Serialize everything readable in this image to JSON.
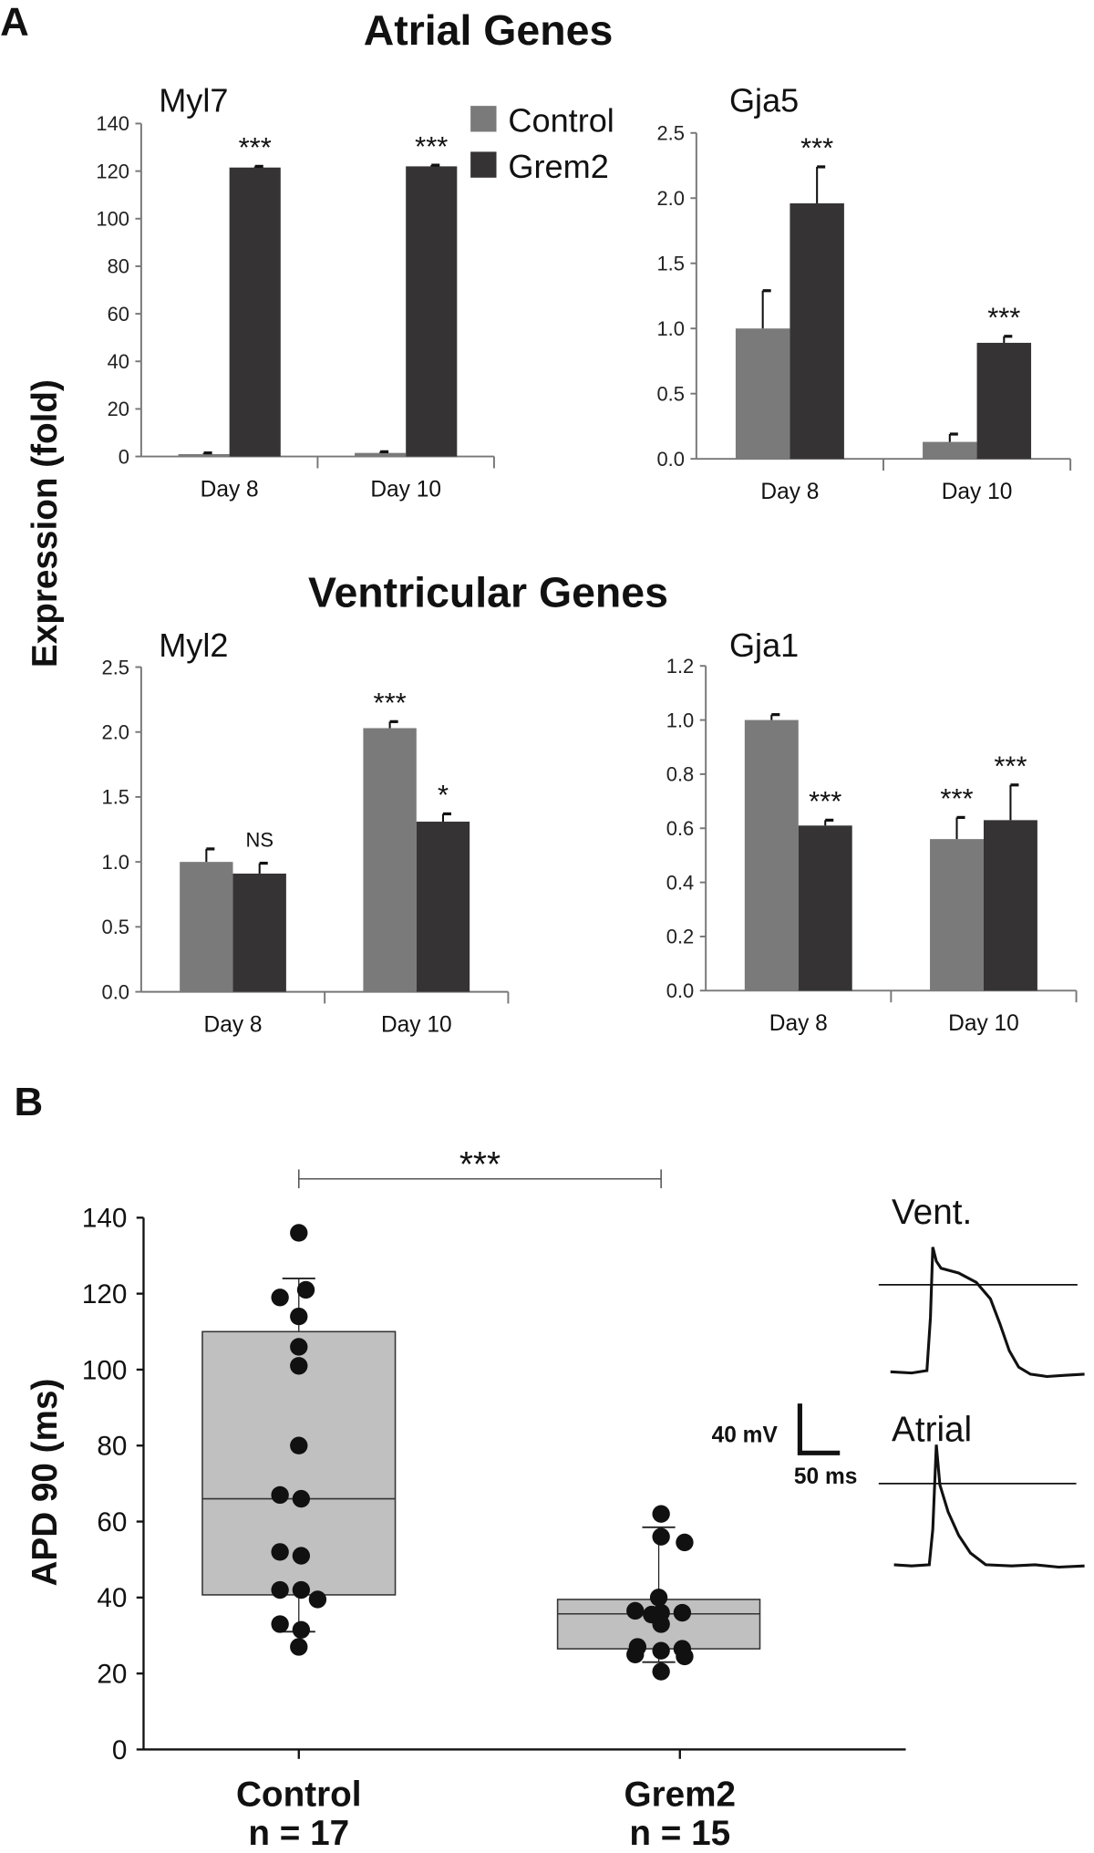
{
  "colors": {
    "control": "#7b7a7b",
    "grem2": "#363334",
    "box": "#c0c0c0",
    "error": "#111111"
  },
  "panels": {
    "a": "A",
    "b": "B"
  },
  "section_titles": {
    "atrial": "Atrial Genes",
    "ventricular": "Ventricular Genes"
  },
  "shared_ylabel": "Expression (fold)",
  "legend": [
    "Control",
    "Grem2"
  ],
  "chart_data": [
    {
      "type": "bar",
      "title": "Myl7",
      "categories": [
        "Day 8",
        "Day 10"
      ],
      "ylim": [
        0,
        140
      ],
      "yticks": [
        "0",
        "20",
        "40",
        "60",
        "80",
        "100",
        "120",
        "140"
      ],
      "series": [
        {
          "name": "Control",
          "values": [
            1,
            1.5
          ],
          "errors": [
            0.5,
            0.5
          ]
        },
        {
          "name": "Grem2",
          "values": [
            121.5,
            122
          ],
          "errors": [
            0.5,
            0.5
          ]
        }
      ],
      "annotations": [
        {
          "category": 0,
          "series": 1,
          "text": "***"
        },
        {
          "category": 1,
          "series": 1,
          "text": "***"
        }
      ]
    },
    {
      "type": "bar",
      "title": "Gja5",
      "categories": [
        "Day 8",
        "Day 10"
      ],
      "ylim": [
        0,
        2.5
      ],
      "yticks": [
        "0.0",
        "0.5",
        "1.0",
        "1.5",
        "2.0",
        "2.5"
      ],
      "series": [
        {
          "name": "Control",
          "values": [
            1.0,
            0.13
          ],
          "errors": [
            0.29,
            0.06
          ]
        },
        {
          "name": "Grem2",
          "values": [
            1.96,
            0.89
          ],
          "errors": [
            0.28,
            0.05
          ]
        }
      ],
      "annotations": [
        {
          "category": 0,
          "series": 1,
          "text": "***"
        },
        {
          "category": 1,
          "series": 1,
          "text": "***"
        }
      ]
    },
    {
      "type": "bar",
      "title": "Myl2",
      "categories": [
        "Day 8",
        "Day 10"
      ],
      "ylim": [
        0,
        2.5
      ],
      "yticks": [
        "0.0",
        "0.5",
        "1.0",
        "1.5",
        "2.0",
        "2.5"
      ],
      "series": [
        {
          "name": "Control",
          "values": [
            1.0,
            2.03
          ],
          "errors": [
            0.1,
            0.05
          ]
        },
        {
          "name": "Grem2",
          "values": [
            0.91,
            1.31
          ],
          "errors": [
            0.08,
            0.06
          ]
        }
      ],
      "annotations": [
        {
          "category": 0,
          "series": 1,
          "text": "NS"
        },
        {
          "category": 1,
          "series": 0,
          "text": "***"
        },
        {
          "category": 1,
          "series": 1,
          "text": "*"
        }
      ]
    },
    {
      "type": "bar",
      "title": "Gja1",
      "categories": [
        "Day 8",
        "Day 10"
      ],
      "ylim": [
        0,
        1.2
      ],
      "yticks": [
        "0.0",
        "0.2",
        "0.4",
        "0.6",
        "0.8",
        "1.0",
        "1.2"
      ],
      "series": [
        {
          "name": "Control",
          "values": [
            1.0,
            0.56
          ],
          "errors": [
            0.02,
            0.08
          ]
        },
        {
          "name": "Grem2",
          "values": [
            0.61,
            0.63
          ],
          "errors": [
            0.02,
            0.13
          ]
        }
      ],
      "annotations": [
        {
          "category": 0,
          "series": 1,
          "text": "***"
        },
        {
          "category": 1,
          "series": 0,
          "text": "***"
        },
        {
          "category": 1,
          "series": 1,
          "text": "***"
        }
      ]
    },
    {
      "type": "box",
      "ylabel": "APD 90 (ms)",
      "ylim": [
        0,
        140
      ],
      "yticks": [
        "0",
        "20",
        "40",
        "60",
        "80",
        "100",
        "120",
        "140"
      ],
      "groups": [
        {
          "name": "Control",
          "n_label": "n = 17",
          "q1": 40.7,
          "median": 66,
          "q3": 110,
          "whisker_low": 31,
          "whisker_high": 124,
          "points": [
            136,
            121,
            119,
            114,
            106,
            101,
            80,
            67,
            66,
            52,
            51,
            42,
            42,
            39.5,
            33,
            31.5,
            27
          ]
        },
        {
          "name": "Grem2",
          "n_label": "n = 15",
          "q1": 26.5,
          "median": 35.7,
          "q3": 39.5,
          "whisker_low": 23,
          "whisker_high": 58.5,
          "points": [
            62,
            56,
            54.5,
            40,
            36.5,
            36,
            36,
            33,
            27,
            26.5,
            26,
            25,
            24.5,
            35.5,
            20.5
          ]
        }
      ],
      "significance": "***"
    }
  ],
  "traces": {
    "vent_label": "Vent.",
    "atrial_label": "Atrial",
    "scale_mv": "40 mV",
    "scale_ms": "50 ms"
  }
}
